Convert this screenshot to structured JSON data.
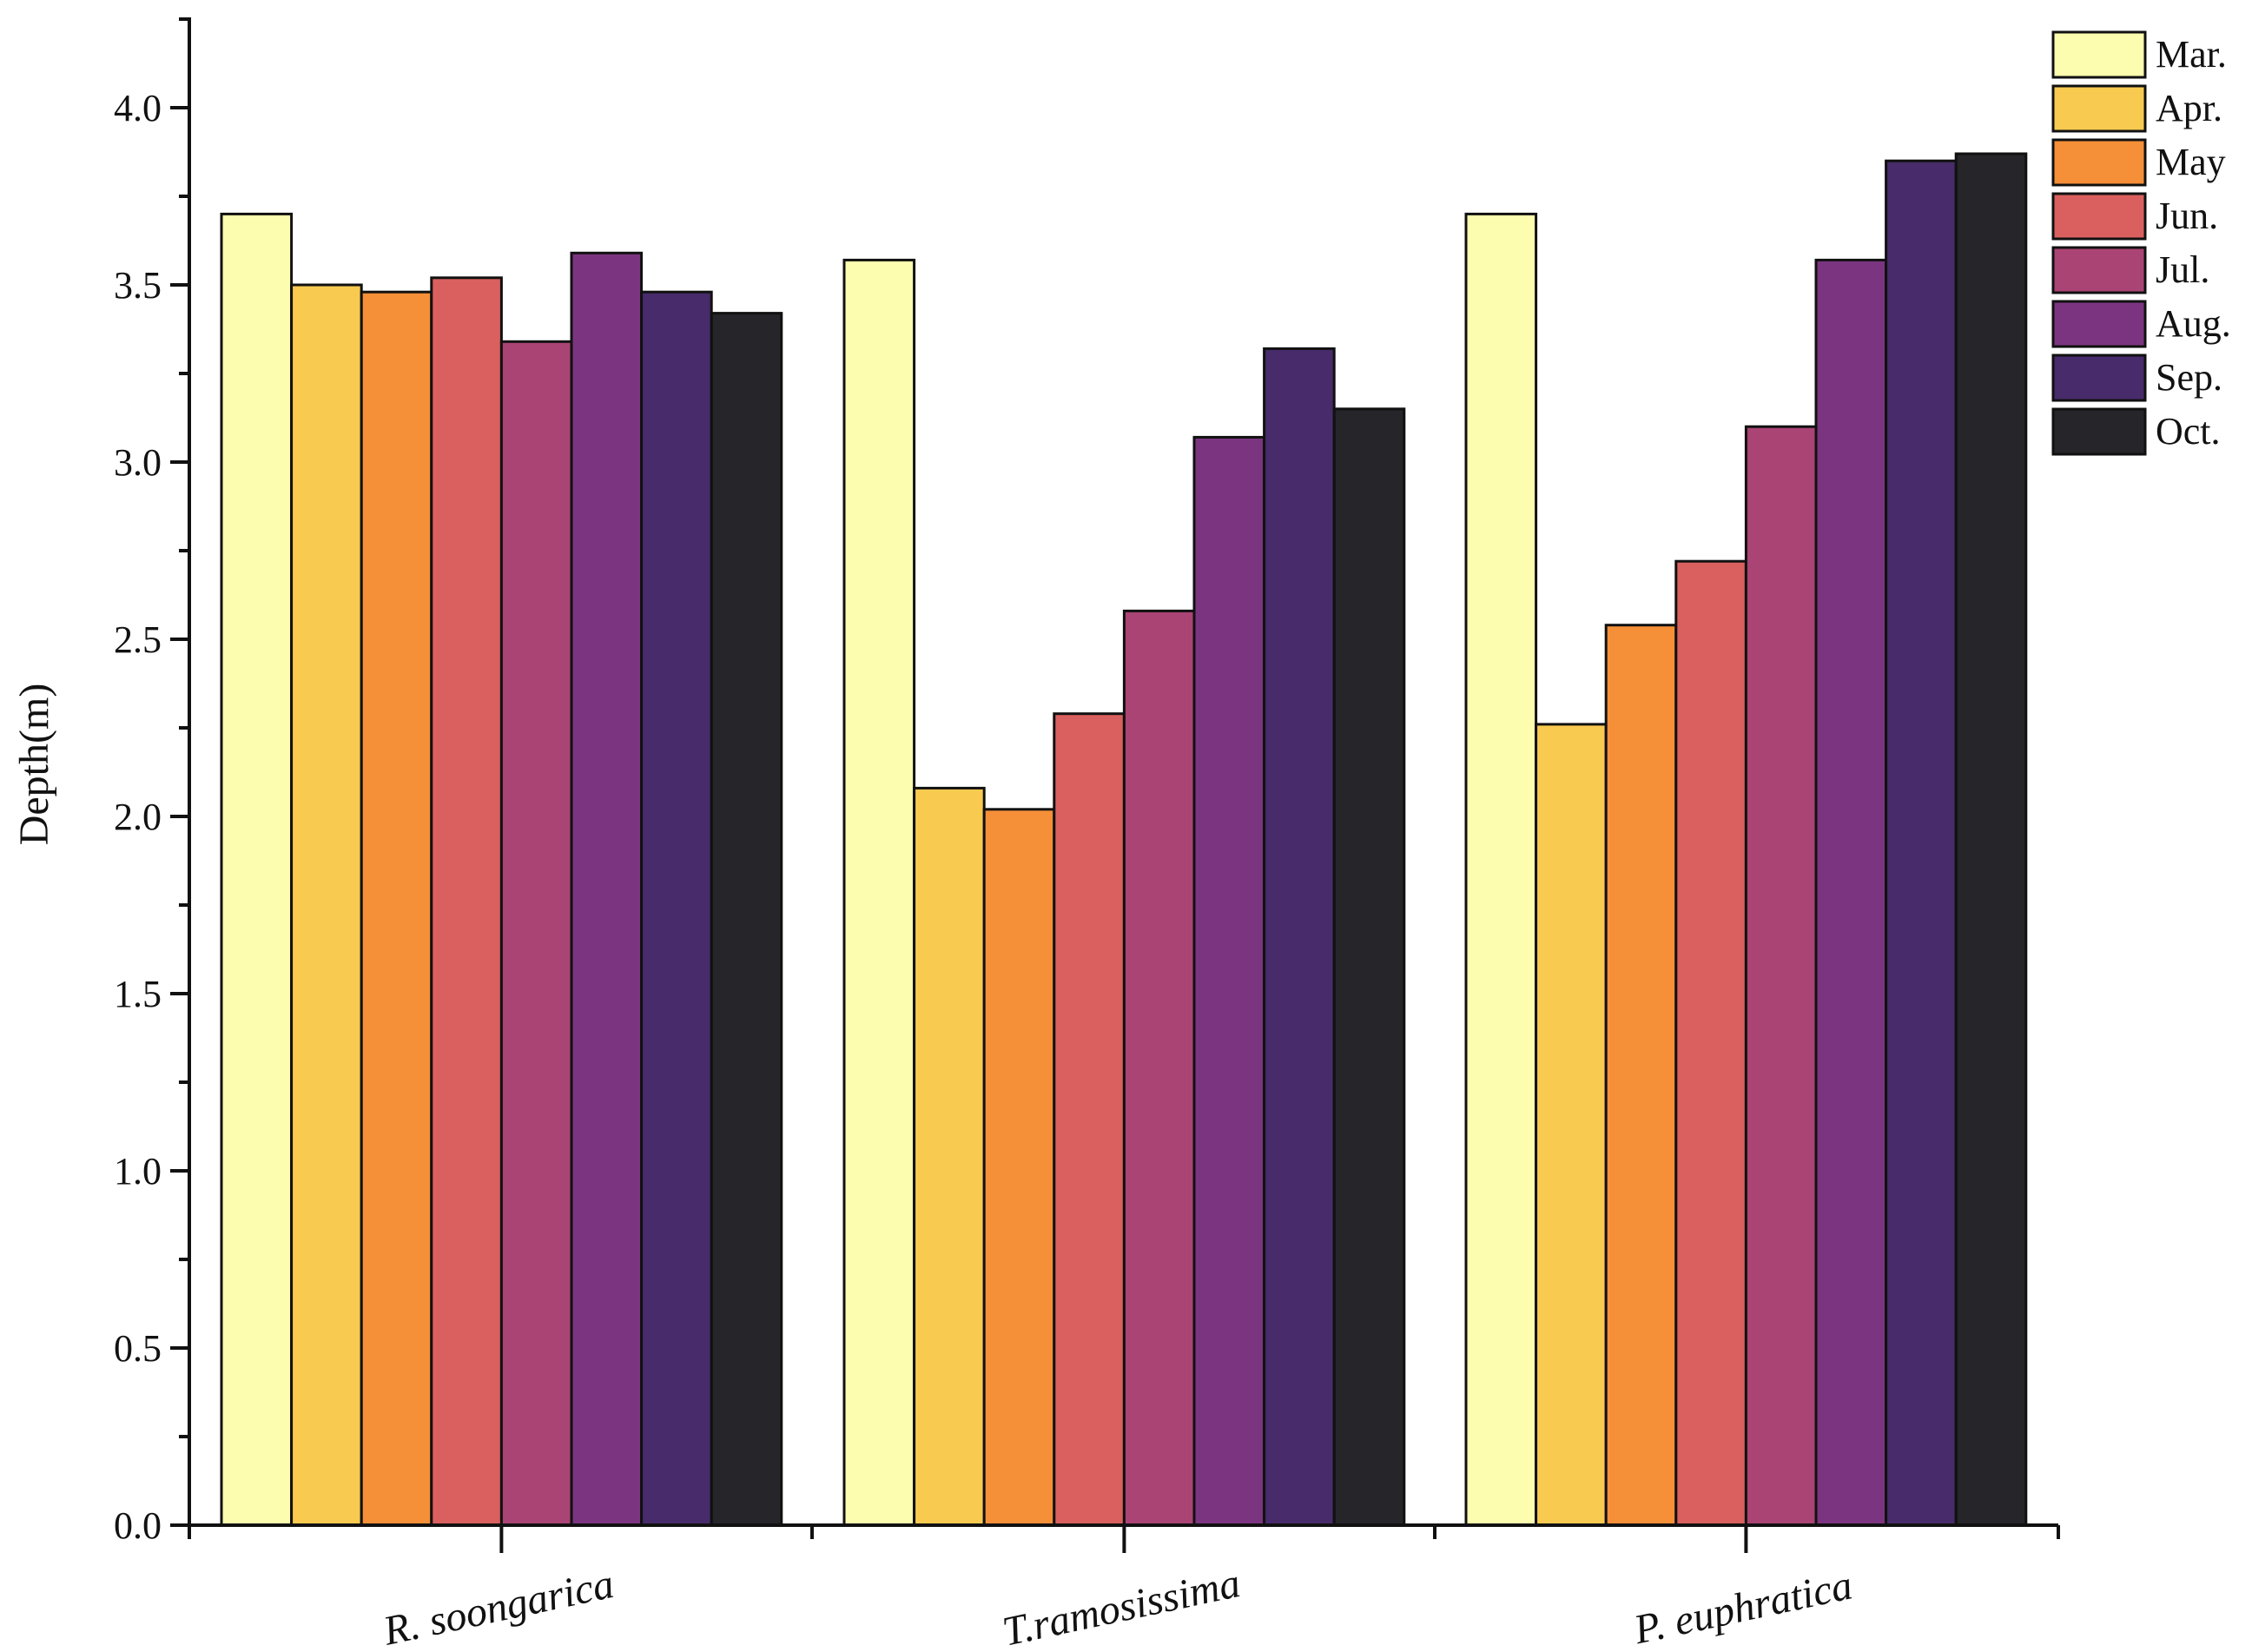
{
  "chart_data": {
    "type": "bar",
    "title": "",
    "xlabel": "",
    "ylabel": "Depth(m)",
    "ylim": [
      0,
      4.25
    ],
    "yticks": [
      "0.0",
      "0.5",
      "1.0",
      "1.5",
      "2.0",
      "2.5",
      "3.0",
      "3.5",
      "4.0"
    ],
    "ytick_values": [
      0,
      0.5,
      1.0,
      1.5,
      2.0,
      2.5,
      3.0,
      3.5,
      4.0
    ],
    "y_minor_step": 0.25,
    "grid": false,
    "legend_position": "top-right",
    "categories": [
      "R. soongarica",
      "T.ramosissima",
      "P. euphratica"
    ],
    "series": [
      {
        "name": "Mar.",
        "color": "#fcfdaf",
        "values": [
          3.7,
          3.57,
          3.7
        ]
      },
      {
        "name": "Apr.",
        "color": "#f9ca50",
        "values": [
          3.5,
          2.08,
          2.26
        ]
      },
      {
        "name": "May",
        "color": "#f58f38",
        "values": [
          3.48,
          2.02,
          2.54
        ]
      },
      {
        "name": "Jun.",
        "color": "#d9605e",
        "values": [
          3.52,
          2.29,
          2.72
        ]
      },
      {
        "name": "Jul.",
        "color": "#aa4474",
        "values": [
          3.34,
          2.58,
          3.1
        ]
      },
      {
        "name": "Aug.",
        "color": "#7b3580",
        "values": [
          3.59,
          3.07,
          3.57
        ]
      },
      {
        "name": "Sep.",
        "color": "#482b6a",
        "values": [
          3.48,
          3.32,
          3.85
        ]
      },
      {
        "name": "Oct.",
        "color": "#25252a",
        "values": [
          3.42,
          3.15,
          3.87
        ]
      }
    ]
  }
}
